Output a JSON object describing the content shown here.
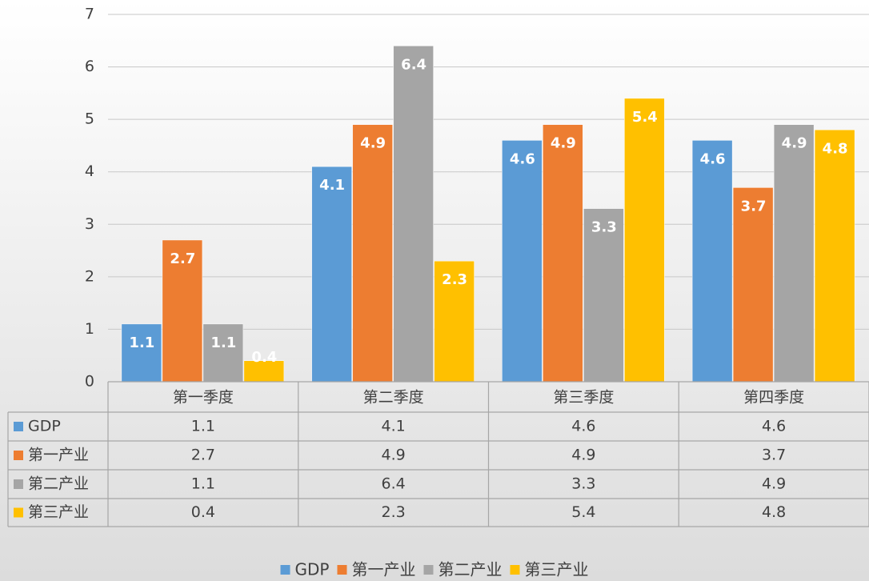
{
  "chart_data": {
    "type": "bar",
    "categories": [
      "第一季度",
      "第二季度",
      "第三季度",
      "第四季度"
    ],
    "series": [
      {
        "name": "GDP",
        "color": "#5b9bd5",
        "values": [
          1.1,
          4.1,
          4.6,
          4.6
        ]
      },
      {
        "name": "第一产业",
        "color": "#ed7d31",
        "values": [
          2.7,
          4.9,
          4.9,
          3.7
        ]
      },
      {
        "name": "第二产业",
        "color": "#a5a5a5",
        "values": [
          1.1,
          6.4,
          3.3,
          4.9
        ]
      },
      {
        "name": "第三产业",
        "color": "#ffc000",
        "values": [
          0.4,
          2.3,
          5.4,
          4.8
        ]
      }
    ],
    "ylim": [
      0,
      7
    ],
    "yticks": [
      0,
      1,
      2,
      3,
      4,
      5,
      6,
      7
    ],
    "grid": true,
    "data_table": true,
    "legend": "bottom"
  }
}
